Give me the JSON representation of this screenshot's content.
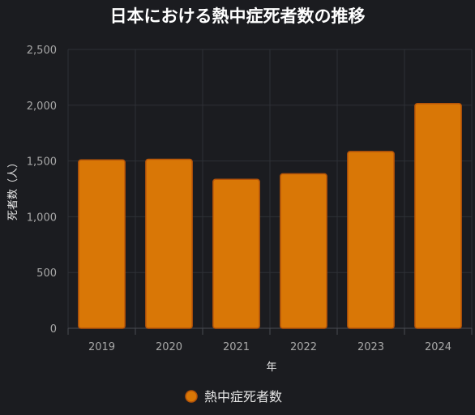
{
  "chart_data": {
    "type": "bar",
    "title": "日本における熱中症死者数の推移",
    "xlabel": "年",
    "ylabel": "死者数（人）",
    "categories": [
      "2019",
      "2020",
      "2021",
      "2022",
      "2023",
      "2024"
    ],
    "series": [
      {
        "name": "熱中症死者数",
        "values": [
          1510,
          1515,
          1335,
          1385,
          1585,
          2015
        ]
      }
    ],
    "ylim": [
      0,
      2500
    ],
    "yticks": [
      0,
      500,
      1000,
      1500,
      2000,
      2500
    ],
    "ytick_labels": [
      "0",
      "500",
      "1,000",
      "1,500",
      "2,000",
      "2,500"
    ],
    "grid": true,
    "legend_position": "bottom",
    "colors": {
      "bar_fill": "#d97706",
      "bar_stroke": "#b45309",
      "background": "#1b1c20"
    }
  }
}
